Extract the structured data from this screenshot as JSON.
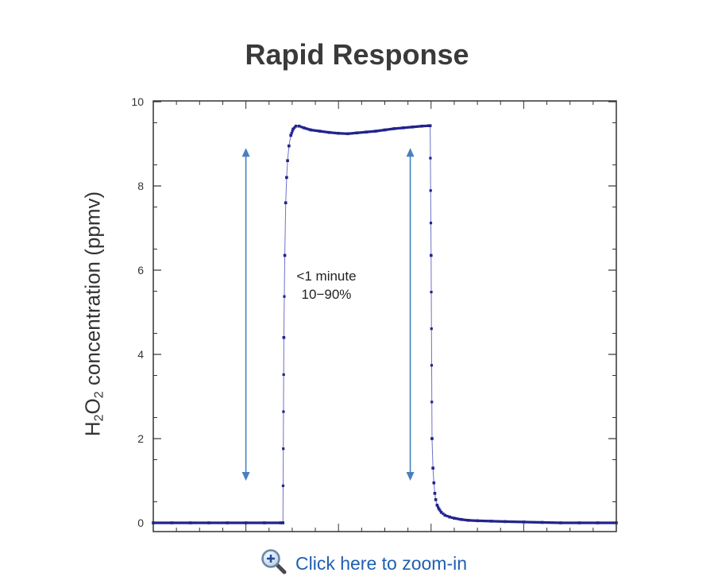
{
  "header": {
    "title": "Rapid Response"
  },
  "zoom_link": {
    "label": "Click here to zoom-in",
    "icon": "magnifier-plus-icon"
  },
  "colors": {
    "series": "#23238c",
    "arrow": "#4a7fc0",
    "link": "#1f5fb0",
    "axis": "#333333"
  },
  "chart_data": {
    "type": "scatter",
    "title": "Rapid Response",
    "ylabel_parts": {
      "h": "H",
      "sub1": "2",
      "o": "O",
      "sub2": "2",
      "rest": " concentration (ppmv)"
    },
    "xlabel": "",
    "xlim": [
      0,
      100
    ],
    "ylim": [
      0,
      10
    ],
    "yticks": [
      0,
      2,
      4,
      6,
      8,
      10
    ],
    "ytick_labels": [
      "0",
      "2",
      "4",
      "6",
      "8",
      "10"
    ],
    "grid": false,
    "series": [
      {
        "values_desc": "",
        "x": [
          0,
          4,
          8,
          12,
          16,
          20,
          24,
          27.5,
          28.0,
          28.2,
          28.4,
          28.6,
          28.8,
          29.0,
          29.3,
          29.7,
          30.2,
          30.8,
          31.5,
          32.5,
          34,
          36,
          38,
          40,
          42,
          44,
          46,
          48,
          50,
          52,
          54,
          56,
          58,
          59.5,
          59.8,
          60.0,
          60.2,
          60.4,
          60.6,
          60.8,
          61.0,
          61.3,
          61.7,
          62.2,
          63,
          64,
          65,
          66.5,
          68,
          70,
          73,
          76,
          80,
          84,
          88,
          92,
          96,
          100
        ],
        "y": [
          0.0,
          0.0,
          0.0,
          0.0,
          0.0,
          0.0,
          0.0,
          0.0,
          0.0,
          4.4,
          6.35,
          7.6,
          8.2,
          8.6,
          8.95,
          9.2,
          9.35,
          9.42,
          9.42,
          9.38,
          9.33,
          9.3,
          9.27,
          9.25,
          9.24,
          9.26,
          9.28,
          9.3,
          9.33,
          9.36,
          9.38,
          9.4,
          9.42,
          9.43,
          9.43,
          6.35,
          2.0,
          1.3,
          0.95,
          0.7,
          0.55,
          0.42,
          0.33,
          0.25,
          0.18,
          0.14,
          0.11,
          0.08,
          0.06,
          0.05,
          0.04,
          0.03,
          0.02,
          0.01,
          0.0,
          0.0,
          0.0,
          0.0
        ]
      }
    ],
    "annotations": [
      {
        "line1": "<1 minute",
        "line2": "10−90%"
      }
    ],
    "arrows": [
      {
        "x": 20,
        "y_from": 1.0,
        "y_to": 8.9,
        "double": true
      },
      {
        "x": 55.5,
        "y_from": 1.0,
        "y_to": 8.9,
        "double": true
      }
    ]
  }
}
